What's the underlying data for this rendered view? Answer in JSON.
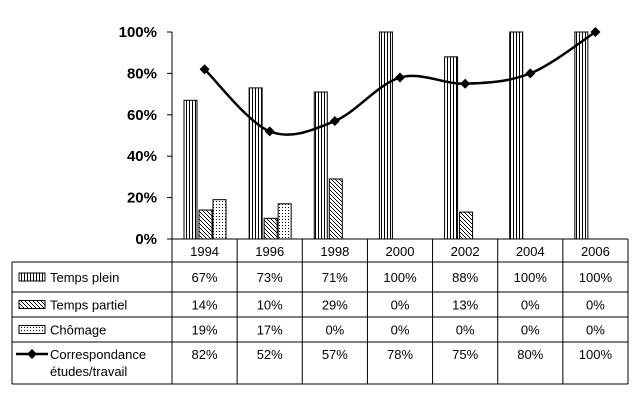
{
  "chart_data": {
    "type": "bar",
    "categories": [
      "1994",
      "1996",
      "1998",
      "2000",
      "2002",
      "2004",
      "2006"
    ],
    "y_ticks": [
      "0%",
      "20%",
      "40%",
      "60%",
      "80%",
      "100%"
    ],
    "ylim": [
      0,
      100
    ],
    "grid": false,
    "legend": "data-table-below",
    "series": [
      {
        "name": "Temps plein",
        "type": "bar",
        "pattern": "vertical-lines",
        "values": [
          67,
          73,
          71,
          100,
          88,
          100,
          100
        ]
      },
      {
        "name": "Temps partiel",
        "type": "bar",
        "pattern": "checker",
        "values": [
          14,
          10,
          29,
          0,
          13,
          0,
          0
        ]
      },
      {
        "name": "Chômage",
        "type": "bar",
        "pattern": "dots",
        "values": [
          19,
          17,
          0,
          0,
          0,
          0,
          0
        ]
      },
      {
        "name": "Correspondance études/travail",
        "name_lines": [
          "Correspondance",
          "études/travail"
        ],
        "type": "line",
        "marker": "diamond",
        "values": [
          82,
          52,
          57,
          78,
          75,
          80,
          100
        ]
      }
    ],
    "table_values": [
      [
        "67%",
        "73%",
        "71%",
        "100%",
        "88%",
        "100%",
        "100%"
      ],
      [
        "14%",
        "10%",
        "29%",
        "0%",
        "13%",
        "0%",
        "0%"
      ],
      [
        "19%",
        "17%",
        "0%",
        "0%",
        "0%",
        "0%",
        "0%"
      ],
      [
        "82%",
        "52%",
        "57%",
        "78%",
        "75%",
        "80%",
        "100%"
      ]
    ]
  }
}
